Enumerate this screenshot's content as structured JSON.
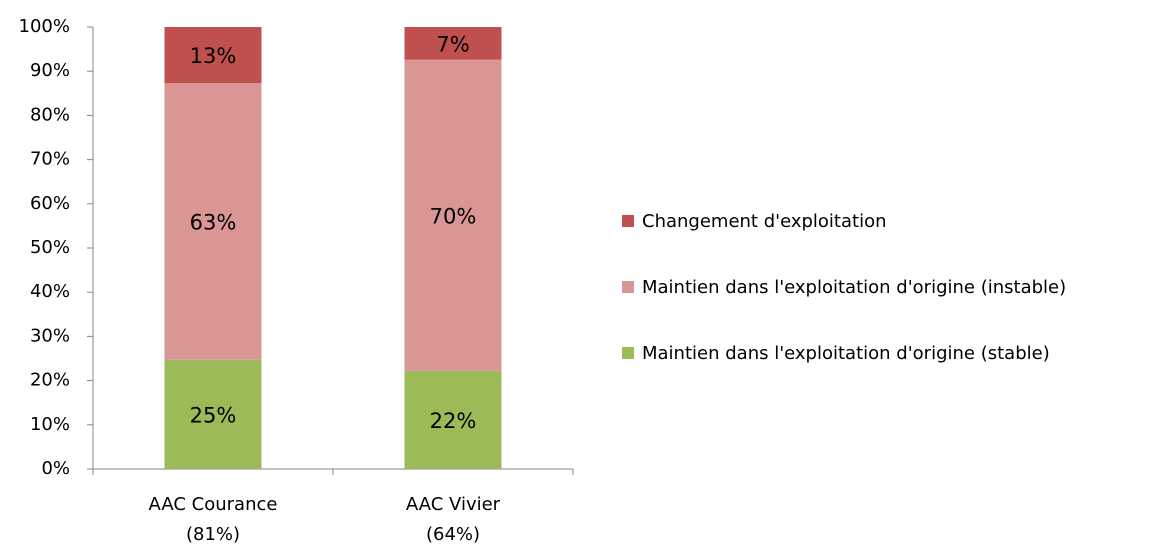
{
  "chart_data": {
    "type": "stacked_bar",
    "categories": [
      "AAC Courance\n(81%)",
      "AAC Vivier\n(64%)"
    ],
    "series": [
      {
        "name": "Maintien dans l'exploitation d'origine (stable)",
        "color": "#9bbb59",
        "values": [
          24.7,
          22.2
        ],
        "value_labels": [
          "25%",
          "22%"
        ]
      },
      {
        "name": "Maintien dans l'exploitation d'origine (instable)",
        "color": "#d99694",
        "values": [
          62.6,
          70.4
        ],
        "value_labels": [
          "63%",
          "70%"
        ]
      },
      {
        "name": "Changement d'exploitation",
        "color": "#c0504d",
        "values": [
          12.7,
          7.4
        ],
        "value_labels": [
          "13%",
          "7%"
        ]
      }
    ],
    "ylim": [
      0,
      100
    ],
    "yticks": [
      {
        "value": 0,
        "label": "0%"
      },
      {
        "value": 10,
        "label": "10%"
      },
      {
        "value": 20,
        "label": "20%"
      },
      {
        "value": 30,
        "label": "30%"
      },
      {
        "value": 40,
        "label": "40%"
      },
      {
        "value": 50,
        "label": "50%"
      },
      {
        "value": 60,
        "label": "60%"
      },
      {
        "value": 70,
        "label": "70%"
      },
      {
        "value": 80,
        "label": "80%"
      },
      {
        "value": 90,
        "label": "90%"
      },
      {
        "value": 100,
        "label": "100%"
      }
    ],
    "legend": "right"
  }
}
